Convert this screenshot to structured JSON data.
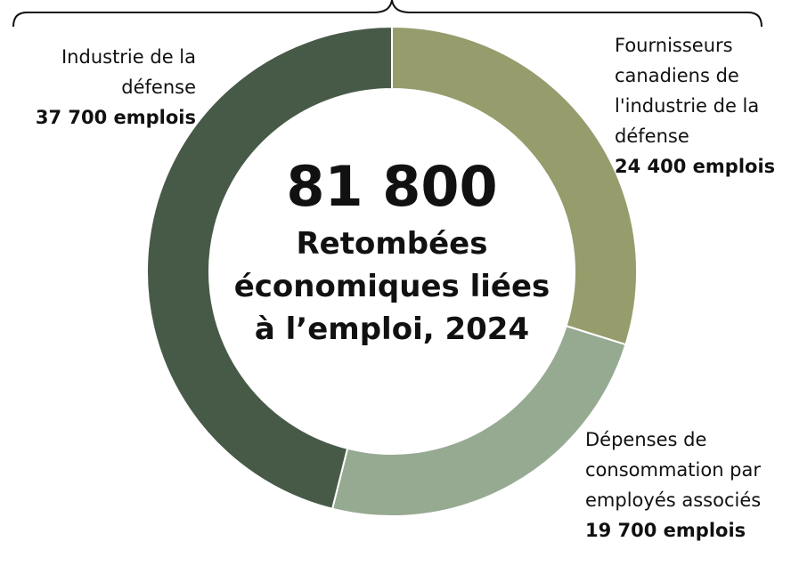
{
  "chart_data": {
    "type": "donut",
    "categories": [
      "Fournisseurs canadiens de l'industrie de la défense",
      "Dépenses de consommation par employés associés",
      "Industrie de la défense"
    ],
    "values": [
      24400,
      19700,
      37700
    ],
    "value_labels": [
      "24 400 emplois",
      "19 700 emplois",
      "37 700 emplois"
    ],
    "colors": [
      "#969c6c",
      "#96aa92",
      "#475a48"
    ],
    "total": {
      "value": 81800,
      "label": "81 800"
    },
    "center_text": "Retombées économiques liées à l’emploi, 2024"
  }
}
